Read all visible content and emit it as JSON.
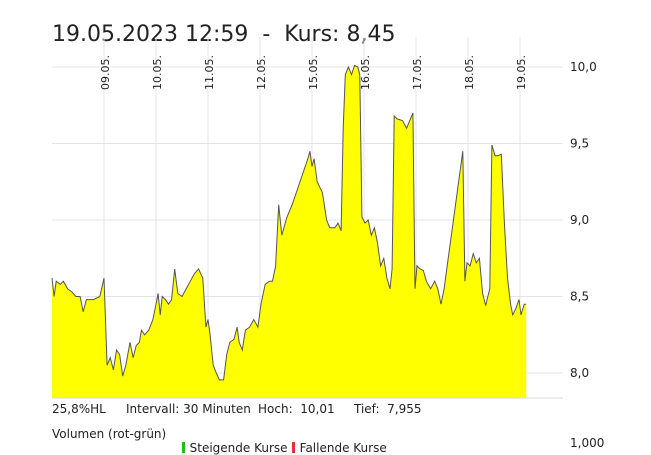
{
  "header": {
    "title": "19.05.2023 12:59  -  Kurs: 8,45"
  },
  "stats": {
    "hl": "25,8%HL",
    "interval": "Intervall: 30 Minuten",
    "high": "Hoch:  10,01",
    "low": "Tief:  7,955"
  },
  "volume_legend": {
    "label": "Volumen (rot-grün)",
    "rising": "Steigende Kurse",
    "falling": "Fallende Kurse",
    "rising_color": "#22bb22",
    "falling_color": "#e0303a",
    "axis_value": "1,000"
  },
  "chart_data": {
    "type": "area",
    "fill_color": "#ffff00",
    "line_color": "#555555",
    "grid": true,
    "ylim": [
      7.85,
      10.03
    ],
    "y_ticks": [
      {
        "v": 8.0,
        "label": "8,0"
      },
      {
        "v": 8.5,
        "label": "8,5"
      },
      {
        "v": 9.0,
        "label": "9,0"
      },
      {
        "v": 9.5,
        "label": "9,5"
      },
      {
        "v": 10.0,
        "label": "10,0"
      }
    ],
    "x_ticks": [
      {
        "t": 1.0,
        "label": "09.05."
      },
      {
        "t": 2.0,
        "label": "10.05."
      },
      {
        "t": 3.0,
        "label": "11.05."
      },
      {
        "t": 4.0,
        "label": "12.05."
      },
      {
        "t": 5.0,
        "label": "15.05."
      },
      {
        "t": 6.0,
        "label": "16.05."
      },
      {
        "t": 7.0,
        "label": "17.05."
      },
      {
        "t": 8.0,
        "label": "18.05."
      },
      {
        "t": 9.0,
        "label": "19.05."
      }
    ],
    "xlim": [
      0.0,
      9.37
    ],
    "points": [
      [
        0.0,
        8.62
      ],
      [
        0.04,
        8.5
      ],
      [
        0.08,
        8.6
      ],
      [
        0.16,
        8.58
      ],
      [
        0.22,
        8.6
      ],
      [
        0.3,
        8.55
      ],
      [
        0.38,
        8.53
      ],
      [
        0.46,
        8.5
      ],
      [
        0.54,
        8.5
      ],
      [
        0.6,
        8.4
      ],
      [
        0.66,
        8.48
      ],
      [
        0.8,
        8.48
      ],
      [
        0.92,
        8.5
      ],
      [
        1.0,
        8.62
      ],
      [
        1.06,
        8.05
      ],
      [
        1.12,
        8.1
      ],
      [
        1.18,
        8.02
      ],
      [
        1.24,
        8.15
      ],
      [
        1.3,
        8.12
      ],
      [
        1.36,
        7.98
      ],
      [
        1.42,
        8.05
      ],
      [
        1.5,
        8.2
      ],
      [
        1.56,
        8.1
      ],
      [
        1.62,
        8.18
      ],
      [
        1.68,
        8.2
      ],
      [
        1.72,
        8.28
      ],
      [
        1.78,
        8.25
      ],
      [
        1.86,
        8.28
      ],
      [
        1.94,
        8.35
      ],
      [
        2.0,
        8.45
      ],
      [
        2.04,
        8.52
      ],
      [
        2.08,
        8.38
      ],
      [
        2.12,
        8.5
      ],
      [
        2.18,
        8.48
      ],
      [
        2.24,
        8.45
      ],
      [
        2.3,
        8.48
      ],
      [
        2.36,
        8.68
      ],
      [
        2.42,
        8.52
      ],
      [
        2.5,
        8.5
      ],
      [
        2.58,
        8.55
      ],
      [
        2.66,
        8.6
      ],
      [
        2.74,
        8.65
      ],
      [
        2.82,
        8.68
      ],
      [
        2.9,
        8.62
      ],
      [
        2.96,
        8.3
      ],
      [
        3.0,
        8.35
      ],
      [
        3.04,
        8.25
      ],
      [
        3.1,
        8.05
      ],
      [
        3.16,
        8.0
      ],
      [
        3.22,
        7.955
      ],
      [
        3.3,
        7.955
      ],
      [
        3.36,
        8.12
      ],
      [
        3.42,
        8.2
      ],
      [
        3.5,
        8.22
      ],
      [
        3.56,
        8.3
      ],
      [
        3.6,
        8.2
      ],
      [
        3.66,
        8.15
      ],
      [
        3.72,
        8.28
      ],
      [
        3.8,
        8.3
      ],
      [
        3.88,
        8.35
      ],
      [
        3.96,
        8.3
      ],
      [
        4.02,
        8.45
      ],
      [
        4.1,
        8.58
      ],
      [
        4.18,
        8.6
      ],
      [
        4.24,
        8.6
      ],
      [
        4.3,
        8.7
      ],
      [
        4.36,
        9.1
      ],
      [
        4.42,
        8.9
      ],
      [
        4.52,
        9.02
      ],
      [
        4.62,
        9.1
      ],
      [
        4.72,
        9.2
      ],
      [
        4.82,
        9.3
      ],
      [
        4.92,
        9.4
      ],
      [
        4.96,
        9.45
      ],
      [
        5.0,
        9.35
      ],
      [
        5.04,
        9.4
      ],
      [
        5.1,
        9.25
      ],
      [
        5.2,
        9.18
      ],
      [
        5.28,
        9.0
      ],
      [
        5.34,
        8.95
      ],
      [
        5.44,
        8.95
      ],
      [
        5.5,
        8.98
      ],
      [
        5.56,
        8.93
      ],
      [
        5.6,
        9.6
      ],
      [
        5.64,
        9.95
      ],
      [
        5.7,
        10.0
      ],
      [
        5.76,
        9.95
      ],
      [
        5.82,
        10.01
      ],
      [
        5.88,
        10.0
      ],
      [
        5.92,
        9.95
      ],
      [
        5.96,
        9.02
      ],
      [
        6.02,
        8.98
      ],
      [
        6.08,
        9.0
      ],
      [
        6.14,
        8.9
      ],
      [
        6.2,
        8.95
      ],
      [
        6.26,
        8.85
      ],
      [
        6.32,
        8.7
      ],
      [
        6.38,
        8.75
      ],
      [
        6.44,
        8.62
      ],
      [
        6.5,
        8.55
      ],
      [
        6.54,
        8.68
      ],
      [
        6.58,
        9.68
      ],
      [
        6.64,
        9.66
      ],
      [
        6.74,
        9.65
      ],
      [
        6.82,
        9.6
      ],
      [
        6.88,
        9.65
      ],
      [
        6.94,
        9.7
      ],
      [
        6.98,
        8.55
      ],
      [
        7.02,
        8.7
      ],
      [
        7.08,
        8.68
      ],
      [
        7.14,
        8.67
      ],
      [
        7.2,
        8.6
      ],
      [
        7.28,
        8.55
      ],
      [
        7.36,
        8.6
      ],
      [
        7.42,
        8.55
      ],
      [
        7.48,
        8.45
      ],
      [
        7.54,
        8.55
      ],
      [
        7.62,
        8.75
      ],
      [
        7.7,
        8.95
      ],
      [
        7.8,
        9.2
      ],
      [
        7.9,
        9.45
      ],
      [
        7.94,
        8.6
      ],
      [
        7.98,
        8.72
      ],
      [
        8.04,
        8.7
      ],
      [
        8.1,
        8.78
      ],
      [
        8.16,
        8.72
      ],
      [
        8.22,
        8.75
      ],
      [
        8.28,
        8.52
      ],
      [
        8.34,
        8.44
      ],
      [
        8.38,
        8.5
      ],
      [
        8.42,
        8.55
      ],
      [
        8.46,
        9.49
      ],
      [
        8.52,
        9.42
      ],
      [
        8.58,
        9.42
      ],
      [
        8.64,
        9.43
      ],
      [
        8.7,
        8.98
      ],
      [
        8.76,
        8.62
      ],
      [
        8.82,
        8.45
      ],
      [
        8.86,
        8.38
      ],
      [
        8.92,
        8.42
      ],
      [
        8.98,
        8.48
      ],
      [
        9.02,
        8.38
      ],
      [
        9.08,
        8.45
      ],
      [
        9.12,
        8.45
      ]
    ]
  }
}
